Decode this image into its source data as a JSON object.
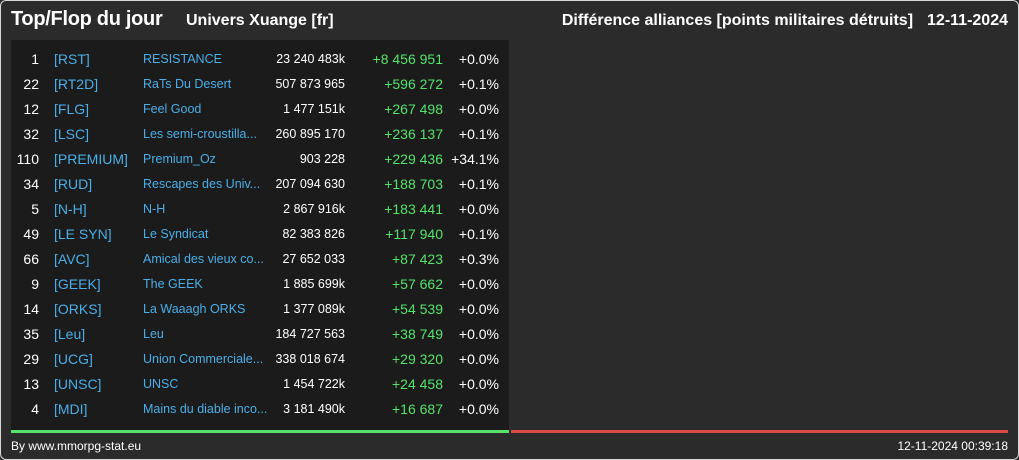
{
  "header": {
    "title": "Top/Flop du jour",
    "subtitle": "Univers Xuange [fr]",
    "metric": "Différence alliances [points militaires détruits]",
    "date": "12-11-2024"
  },
  "colors": {
    "background": "#2b2b2b",
    "panel": "#1b1b1b",
    "tag_blue": "#4aaee8",
    "positive_green": "#55e36b",
    "flop_red": "#d94b43"
  },
  "top": {
    "rows": [
      {
        "rank": "1",
        "tag": "[RST]",
        "name": "RESISTANCE",
        "points": "23 240 483k",
        "diff": "+8 456 951",
        "pct": "+0.0%"
      },
      {
        "rank": "22",
        "tag": "[RT2D]",
        "name": "RaTs Du Desert",
        "points": "507 873 965",
        "diff": "+596 272",
        "pct": "+0.1%"
      },
      {
        "rank": "12",
        "tag": "[FLG]",
        "name": "Feel Good",
        "points": "1 477 151k",
        "diff": "+267 498",
        "pct": "+0.0%"
      },
      {
        "rank": "32",
        "tag": "[LSC]",
        "name": "Les semi-croustilla...",
        "points": "260 895 170",
        "diff": "+236 137",
        "pct": "+0.1%"
      },
      {
        "rank": "110",
        "tag": "[PREMIUM]",
        "name": "Premium_Oz",
        "points": "903 228",
        "diff": "+229 436",
        "pct": "+34.1%"
      },
      {
        "rank": "34",
        "tag": "[RUD]",
        "name": "Rescapes des Univ...",
        "points": "207 094 630",
        "diff": "+188 703",
        "pct": "+0.1%"
      },
      {
        "rank": "5",
        "tag": "[N-H]",
        "name": "N-H",
        "points": "2 867 916k",
        "diff": "+183 441",
        "pct": "+0.0%"
      },
      {
        "rank": "49",
        "tag": "[LE SYN]",
        "name": "Le Syndicat",
        "points": "82 383 826",
        "diff": "+117 940",
        "pct": "+0.1%"
      },
      {
        "rank": "66",
        "tag": "[AVC]",
        "name": "Amical des vieux co...",
        "points": "27 652 033",
        "diff": "+87 423",
        "pct": "+0.3%"
      },
      {
        "rank": "9",
        "tag": "[GEEK]",
        "name": "The GEEK",
        "points": "1 885 699k",
        "diff": "+57 662",
        "pct": "+0.0%"
      },
      {
        "rank": "14",
        "tag": "[ORKS]",
        "name": "La Waaagh ORKS",
        "points": "1 377 089k",
        "diff": "+54 539",
        "pct": "+0.0%"
      },
      {
        "rank": "35",
        "tag": "[Leu]",
        "name": "Leu",
        "points": "184 727 563",
        "diff": "+38 749",
        "pct": "+0.0%"
      },
      {
        "rank": "29",
        "tag": "[UCG]",
        "name": "Union Commerciale...",
        "points": "338 018 674",
        "diff": "+29 320",
        "pct": "+0.0%"
      },
      {
        "rank": "13",
        "tag": "[UNSC]",
        "name": "UNSC",
        "points": "1 454 722k",
        "diff": "+24 458",
        "pct": "+0.0%"
      },
      {
        "rank": "4",
        "tag": "[MDI]",
        "name": "Mains du diable inco...",
        "points": "3 181 490k",
        "diff": "+16 687",
        "pct": "+0.0%"
      }
    ]
  },
  "flop": {
    "rows": []
  },
  "footer": {
    "credit": "By www.mmorpg-stat.eu",
    "timestamp": "12-11-2024 00:39:18"
  }
}
